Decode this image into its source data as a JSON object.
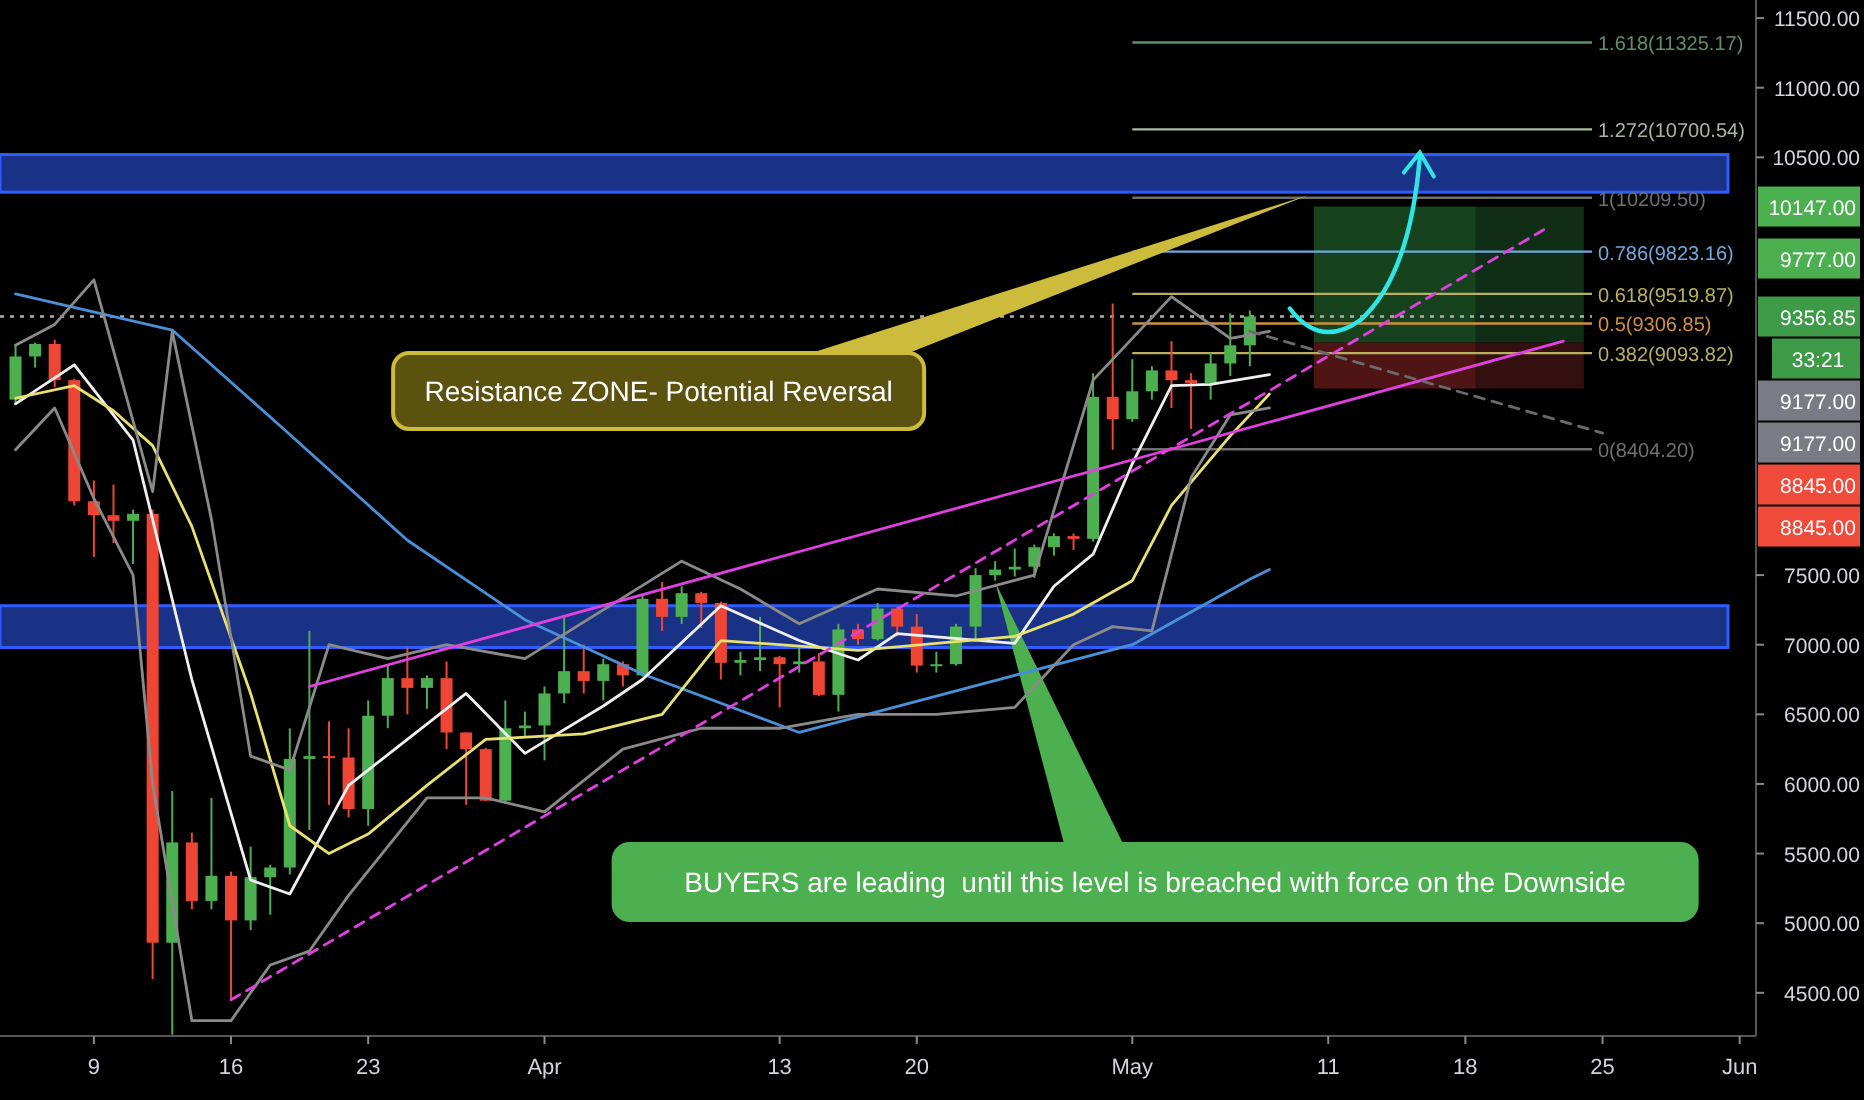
{
  "chart_data": {
    "type": "candlestick",
    "x": [
      "--03-05",
      "--03-06",
      "--03-07",
      "--03-08",
      "--03-09",
      "--03-10",
      "--03-11",
      "--03-12",
      "--03-13",
      "--03-14",
      "--03-15",
      "--03-16",
      "--03-17",
      "--03-18",
      "--03-19",
      "--03-20",
      "--03-21",
      "--03-22",
      "--03-23",
      "--03-24",
      "--03-25",
      "--03-26",
      "--03-27",
      "--03-28",
      "--03-29",
      "--03-30",
      "--03-31",
      "--04-01",
      "--04-02",
      "--04-03",
      "--04-04",
      "--04-05",
      "--04-06",
      "--04-07",
      "--04-08",
      "--04-09",
      "--04-10",
      "--04-11",
      "--04-12",
      "--04-13",
      "--04-14",
      "--04-15",
      "--04-16",
      "--04-17",
      "--04-18",
      "--04-19",
      "--04-20",
      "--04-21",
      "--04-22",
      "--04-23",
      "--04-24",
      "--04-25",
      "--04-26",
      "--04-27",
      "--04-28",
      "--04-29",
      "--04-30",
      "--05-01",
      "--05-02",
      "--05-03",
      "--05-04",
      "--05-05",
      "--05-06",
      "--05-07"
    ],
    "ohlc": [
      [
        8760,
        9150,
        8730,
        9070
      ],
      [
        9070,
        9170,
        8990,
        9160
      ],
      [
        9160,
        9190,
        8850,
        8900
      ],
      [
        8900,
        8910,
        8000,
        8030
      ],
      [
        8030,
        8180,
        7630,
        7930
      ],
      [
        7930,
        8150,
        7730,
        7890
      ],
      [
        7890,
        7970,
        7580,
        7940
      ],
      [
        7940,
        7970,
        4600,
        4860
      ],
      [
        4860,
        5950,
        4200,
        5580
      ],
      [
        5580,
        5650,
        5100,
        5160
      ],
      [
        5160,
        5900,
        5100,
        5340
      ],
      [
        5340,
        5370,
        4450,
        5020
      ],
      [
        5020,
        5550,
        4950,
        5330
      ],
      [
        5330,
        5420,
        5060,
        5400
      ],
      [
        5400,
        6400,
        5350,
        6180
      ],
      [
        6180,
        7100,
        5670,
        6200
      ],
      [
        6200,
        6450,
        5850,
        6190
      ],
      [
        6190,
        6400,
        5760,
        5820
      ],
      [
        5820,
        6600,
        5700,
        6490
      ],
      [
        6490,
        6850,
        6400,
        6760
      ],
      [
        6760,
        6980,
        6500,
        6690
      ],
      [
        6690,
        6780,
        6540,
        6760
      ],
      [
        6760,
        6880,
        6250,
        6370
      ],
      [
        6370,
        6370,
        5850,
        6250
      ],
      [
        6250,
        6260,
        5880,
        5880
      ],
      [
        5880,
        6600,
        5860,
        6400
      ],
      [
        6400,
        6520,
        6330,
        6420
      ],
      [
        6420,
        6700,
        6170,
        6650
      ],
      [
        6650,
        7200,
        6580,
        6810
      ],
      [
        6810,
        7000,
        6650,
        6740
      ],
      [
        6740,
        6900,
        6600,
        6860
      ],
      [
        6860,
        6880,
        6700,
        6780
      ],
      [
        6780,
        7350,
        6770,
        7330
      ],
      [
        7330,
        7450,
        7100,
        7200
      ],
      [
        7200,
        7420,
        7150,
        7370
      ],
      [
        7370,
        7380,
        7120,
        7300
      ],
      [
        7300,
        7310,
        6750,
        6870
      ],
      [
        6870,
        6950,
        6780,
        6890
      ],
      [
        6890,
        7200,
        6810,
        6910
      ],
      [
        6910,
        6920,
        6550,
        6860
      ],
      [
        6860,
        6980,
        6800,
        6880
      ],
      [
        6880,
        6940,
        6630,
        6640
      ],
      [
        6640,
        7150,
        6520,
        7110
      ],
      [
        7110,
        7150,
        7000,
        7040
      ],
      [
        7040,
        7300,
        7030,
        7260
      ],
      [
        7260,
        7270,
        7060,
        7130
      ],
      [
        7130,
        7220,
        6800,
        6850
      ],
      [
        6850,
        6950,
        6800,
        6860
      ],
      [
        6860,
        7150,
        6850,
        7130
      ],
      [
        7130,
        7550,
        7020,
        7500
      ],
      [
        7500,
        7600,
        7460,
        7540
      ],
      [
        7540,
        7690,
        7490,
        7560
      ],
      [
        7560,
        7720,
        7480,
        7700
      ],
      [
        7700,
        7800,
        7640,
        7780
      ],
      [
        7780,
        7800,
        7680,
        7760
      ],
      [
        7760,
        8950,
        7740,
        8780
      ],
      [
        8780,
        9450,
        8400,
        8620
      ],
      [
        8620,
        9050,
        8600,
        8820
      ],
      [
        8820,
        9000,
        8760,
        8970
      ],
      [
        8970,
        9180,
        8700,
        8900
      ],
      [
        8900,
        8950,
        8550,
        8880
      ],
      [
        8880,
        9100,
        8760,
        9020
      ],
      [
        9020,
        9380,
        8930,
        9150
      ],
      [
        9150,
        9400,
        9000,
        9356.85
      ]
    ],
    "series": [
      {
        "type": "line",
        "color": "#4a90d9",
        "x": [
          "--03-05",
          "--03-13",
          "--03-19",
          "--03-25",
          "--03-31",
          "--04-06",
          "--04-14",
          "--04-25",
          "--05-01",
          "--05-07",
          "--05-08"
        ],
        "values": [
          9520,
          9260,
          8510,
          7750,
          7180,
          6790,
          6370,
          6780,
          7000,
          7470,
          7540
        ]
      },
      {
        "type": "line",
        "color": "#f0f0f0",
        "x": [
          "--03-05",
          "--03-08",
          "--03-11",
          "--03-14",
          "--03-17",
          "--03-19",
          "--03-22",
          "--03-25",
          "--03-28",
          "--03-31",
          "--04-04",
          "--04-06",
          "--04-10",
          "--04-14",
          "--04-17",
          "--04-19",
          "--04-25",
          "--04-27",
          "--04-29",
          "--05-01",
          "--05-03",
          "--05-05",
          "--05-08"
        ],
        "values": [
          8730,
          9010,
          8470,
          6750,
          5310,
          5210,
          5990,
          6320,
          6650,
          6220,
          6560,
          6750,
          7280,
          7030,
          6890,
          7080,
          7010,
          7420,
          7650,
          8300,
          8860,
          8870,
          8940
        ]
      },
      {
        "type": "line",
        "color": "#e8e070",
        "x": [
          "--03-05",
          "--03-08",
          "--03-10",
          "--03-12",
          "--03-14",
          "--03-17",
          "--03-19",
          "--03-21",
          "--03-23",
          "--03-26",
          "--03-29",
          "--04-03",
          "--04-07",
          "--04-10",
          "--04-17",
          "--04-25",
          "--04-28",
          "--05-01",
          "--05-03",
          "--05-06",
          "--05-08"
        ],
        "values": [
          8770,
          8860,
          8680,
          8430,
          7850,
          6650,
          5700,
          5500,
          5640,
          5990,
          6320,
          6360,
          6500,
          7030,
          6960,
          7060,
          7220,
          7460,
          8000,
          8500,
          8800
        ]
      },
      {
        "type": "line",
        "color": "#8a8a8a",
        "x": [
          "--03-05",
          "--03-07",
          "--03-09",
          "--03-12",
          "--03-13",
          "--03-15",
          "--03-17",
          "--03-19",
          "--03-21",
          "--03-24",
          "--03-27",
          "--03-31",
          "--04-08",
          "--04-11",
          "--04-14",
          "--04-18",
          "--04-22",
          "--04-26",
          "--04-29",
          "--05-03",
          "--05-06",
          "--05-08"
        ],
        "values": [
          9150,
          9300,
          9620,
          8100,
          9250,
          7900,
          6200,
          6100,
          7000,
          6900,
          7000,
          6900,
          7600,
          7400,
          7150,
          7400,
          7350,
          7500,
          8900,
          9500,
          9200,
          9250
        ]
      },
      {
        "type": "line",
        "color": "#8a8a8a",
        "x": [
          "--03-05",
          "--03-07",
          "--03-09",
          "--03-11",
          "--03-12",
          "--03-14",
          "--03-16",
          "--03-18",
          "--03-20",
          "--03-22",
          "--03-26",
          "--03-29",
          "--04-01",
          "--04-05",
          "--04-09",
          "--04-13",
          "--04-17",
          "--04-21",
          "--04-25",
          "--04-28",
          "--04-30",
          "--05-02",
          "--05-04",
          "--05-06",
          "--05-08"
        ],
        "values": [
          8400,
          8700,
          8050,
          7500,
          6000,
          4300,
          4300,
          4700,
          4800,
          5200,
          5900,
          5900,
          5800,
          6250,
          6400,
          6400,
          6500,
          6500,
          6550,
          7000,
          7130,
          7100,
          8200,
          8650,
          8700
        ]
      },
      {
        "type": "line",
        "color": "#e040e0",
        "x": [
          "--03-20",
          "--05-23"
        ],
        "values": [
          6700,
          9180
        ]
      },
      {
        "type": "line",
        "color": "#e040e0",
        "line_style": "dashed",
        "x": [
          "--03-16",
          "--05-22"
        ],
        "values": [
          4450,
          9980
        ]
      },
      {
        "type": "line",
        "color": "#6a6a6a",
        "line_style": "dashed",
        "x": [
          "--05-07",
          "--05-25"
        ],
        "values": [
          9250,
          8520
        ]
      }
    ],
    "xlim": [
      "--03-04T05:00",
      "--06-01T20:00"
    ],
    "xticks": [
      {
        "value": "--03-09",
        "label": "9"
      },
      {
        "value": "--03-16",
        "label": "16"
      },
      {
        "value": "--03-23",
        "label": "23"
      },
      {
        "value": "--04-01",
        "label": "Apr"
      },
      {
        "value": "--04-13",
        "label": "13"
      },
      {
        "value": "--04-20",
        "label": "20"
      },
      {
        "value": "--05-01",
        "label": "May"
      },
      {
        "value": "--05-11",
        "label": "11"
      },
      {
        "value": "--05-18",
        "label": "18"
      },
      {
        "value": "--05-25",
        "label": "25"
      },
      {
        "value": "--06-01",
        "label": "Jun"
      }
    ],
    "ylim": [
      4190,
      11630
    ],
    "yticks": [
      {
        "value": 4500,
        "label": "4500.00"
      },
      {
        "value": 5000,
        "label": "5000.00"
      },
      {
        "value": 5500,
        "label": "5500.00"
      },
      {
        "value": 6000,
        "label": "6000.00"
      },
      {
        "value": 6500,
        "label": "6500.00"
      },
      {
        "value": 7000,
        "label": "7000.00"
      },
      {
        "value": 7500,
        "label": "7500.00"
      },
      {
        "value": 10500,
        "label": "10500.00"
      },
      {
        "value": 11000,
        "label": "11000.00"
      },
      {
        "value": 11500,
        "label": "11500.00"
      }
    ],
    "bands": [
      {
        "axis": "y",
        "from": 10250,
        "to": 10520,
        "color": "#1f3fa8"
      },
      {
        "axis": "y",
        "from": 6980,
        "to": 7280,
        "color": "#1f3fa8"
      }
    ],
    "ref_lines": [
      {
        "axis": "y",
        "value": 11325.17,
        "label": "1.618(11325.17)",
        "color": "#5f8f6a",
        "line_style": "solid"
      },
      {
        "axis": "y",
        "value": 10700.54,
        "label": "1.272(10700.54)",
        "color": "#a8b8a0",
        "line_style": "solid"
      },
      {
        "axis": "y",
        "value": 10209.5,
        "label": "1(10209.50)",
        "color": "#6f6f6f",
        "line_style": "solid"
      },
      {
        "axis": "y",
        "value": 9823.16,
        "label": "0.786(9823.16)",
        "color": "#6fa8dc",
        "line_style": "solid"
      },
      {
        "axis": "y",
        "value": 9519.87,
        "label": "0.618(9519.87)",
        "color": "#b8b060",
        "line_style": "solid"
      },
      {
        "axis": "y",
        "value": 9306.85,
        "label": "0.5(9306.85)",
        "color": "#d0903e",
        "line_style": "solid"
      },
      {
        "axis": "y",
        "value": 9093.82,
        "label": "0.382(9093.82)",
        "color": "#b8b060",
        "line_style": "solid"
      },
      {
        "axis": "y",
        "value": 8404.2,
        "label": "0(8404.20)",
        "color": "#6f6f6f",
        "line_style": "solid"
      },
      {
        "axis": "y",
        "value": 9356.85,
        "color": "#b0b0b0",
        "line_style": "dotted"
      }
    ],
    "annotations": [
      {
        "text": "Resistance ZONE- Potential Reversal",
        "x": "--05-10",
        "y": 10230
      },
      {
        "text": "BUYERS are leading  until this level is breached with force on the Downside",
        "x": "--04-24",
        "y": 7450
      },
      "10147.00",
      "9777.00",
      "9356.85",
      "33:21",
      "9177.00",
      "9177.00",
      "8845.00",
      "8845.00"
    ]
  }
}
